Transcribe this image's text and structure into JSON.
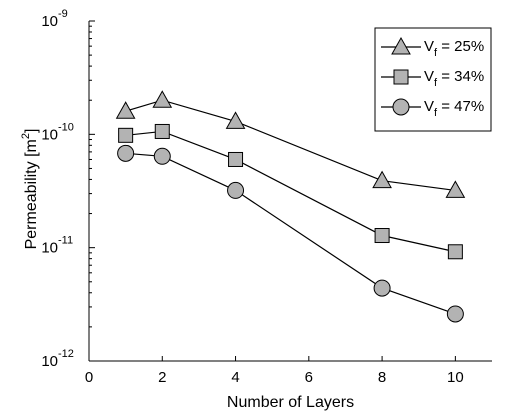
{
  "chart_data": {
    "type": "line",
    "xlabel": "Number of Layers",
    "ylabel_main": "Permeability [m",
    "ylabel_sup": "2",
    "ylabel_close": "]",
    "xlim": [
      0,
      11
    ],
    "ylim": [
      1e-12,
      1e-09
    ],
    "yscale": "log",
    "grid": false,
    "legend_position": "top-right",
    "x_ticks": [
      0,
      2,
      4,
      6,
      8,
      10
    ],
    "x_tick_labels": [
      "0",
      "2",
      "4",
      "6",
      "8",
      "10"
    ],
    "y_ticks": [
      1e-12,
      1e-11,
      1e-10,
      1e-09
    ],
    "y_tick_labels": [
      {
        "base": "10",
        "exp": "-12"
      },
      {
        "base": "10",
        "exp": "-11"
      },
      {
        "base": "10",
        "exp": "-10"
      },
      {
        "base": "10",
        "exp": "-9"
      }
    ],
    "x": [
      1,
      2,
      4,
      8,
      10
    ],
    "series": [
      {
        "label_main": "V",
        "label_sub": "f",
        "label_rest": " = 25%",
        "marker": "triangle",
        "values": [
          1.6e-10,
          2e-10,
          1.3e-10,
          3.9e-11,
          3.2e-11
        ]
      },
      {
        "label_main": "V",
        "label_sub": "f",
        "label_rest": " = 34%",
        "marker": "square",
        "values": [
          9.8e-11,
          1.06e-10,
          6e-11,
          1.28e-11,
          9.2e-12
        ]
      },
      {
        "label_main": "V",
        "label_sub": "f",
        "label_rest": " = 47%",
        "marker": "circle",
        "values": [
          6.8e-11,
          6.4e-11,
          3.2e-11,
          4.4e-12,
          2.6e-12
        ]
      }
    ],
    "colors": {
      "marker_fill": "#b3b3b3",
      "stroke": "#000000"
    }
  }
}
